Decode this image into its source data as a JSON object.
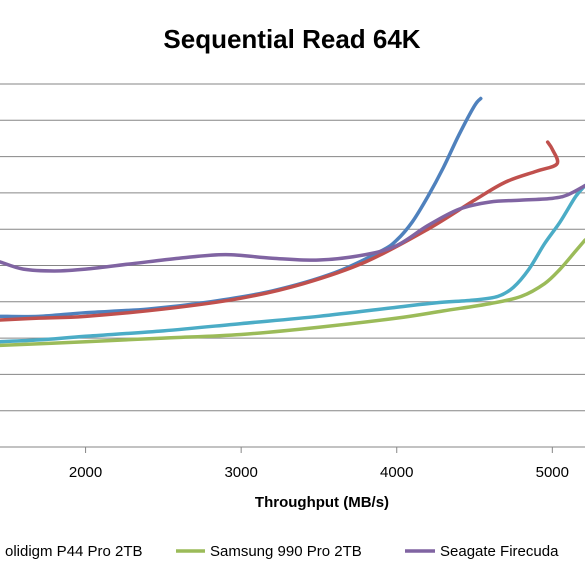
{
  "chart_data": {
    "type": "line",
    "title": "Sequential Read 64K",
    "xlabel": "Throughput (MB/s)",
    "ylabel": "",
    "x_ticks": [
      2000,
      3000,
      4000,
      5000
    ],
    "xlim": [
      1450,
      5210
    ],
    "ylim": [
      0,
      10
    ],
    "gridlines": "horizontal",
    "legend_position": "bottom",
    "legend": [
      {
        "label": "olidigm P44 Pro 2TB",
        "color": "#4bacc6"
      },
      {
        "label": "Samsung 990 Pro 2TB",
        "color": "#9bbb59"
      },
      {
        "label": "Seagate Firecuda",
        "color": "#8064a2"
      }
    ],
    "series": [
      {
        "color": "#4f81bd",
        "x": [
          1450,
          1700,
          2000,
          2400,
          2800,
          3200,
          3600,
          3900,
          4000,
          4100,
          4200,
          4300,
          4400,
          4500,
          4540
        ],
        "y": [
          3.6,
          3.6,
          3.7,
          3.8,
          4.0,
          4.3,
          4.8,
          5.4,
          5.7,
          6.2,
          6.9,
          7.7,
          8.6,
          9.4,
          9.6
        ]
      },
      {
        "color": "#c0504d",
        "x": [
          1450,
          1700,
          2000,
          2500,
          3000,
          3400,
          3800,
          4200,
          4500,
          4700,
          4900,
          5030,
          5000,
          4970
        ],
        "y": [
          3.5,
          3.55,
          3.6,
          3.8,
          4.1,
          4.5,
          5.1,
          6.0,
          6.8,
          7.3,
          7.6,
          7.8,
          8.2,
          8.4
        ]
      },
      {
        "color": "#4bacc6",
        "x": [
          1450,
          1700,
          2000,
          2500,
          3000,
          3500,
          4000,
          4250,
          4500,
          4650,
          4750,
          4850,
          4950,
          5050,
          5150,
          5210
        ],
        "y": [
          2.9,
          2.95,
          3.05,
          3.2,
          3.4,
          3.6,
          3.85,
          3.97,
          4.05,
          4.15,
          4.4,
          4.9,
          5.6,
          6.2,
          6.9,
          7.2
        ]
      },
      {
        "color": "#9bbb59",
        "x": [
          1450,
          2000,
          2500,
          3000,
          3500,
          4000,
          4300,
          4600,
          4800,
          4950,
          5050,
          5150,
          5210
        ],
        "y": [
          2.8,
          2.9,
          3.0,
          3.1,
          3.3,
          3.55,
          3.75,
          3.95,
          4.15,
          4.5,
          4.9,
          5.4,
          5.7
        ]
      },
      {
        "color": "#8064a2",
        "x": [
          1450,
          1600,
          1800,
          2000,
          2300,
          2600,
          2900,
          3200,
          3500,
          3800,
          4000,
          4200,
          4400,
          4600,
          4800,
          5000,
          5100,
          5210
        ],
        "y": [
          5.1,
          4.9,
          4.85,
          4.9,
          5.05,
          5.2,
          5.3,
          5.2,
          5.15,
          5.3,
          5.55,
          6.1,
          6.55,
          6.75,
          6.8,
          6.85,
          6.95,
          7.2
        ]
      }
    ]
  }
}
